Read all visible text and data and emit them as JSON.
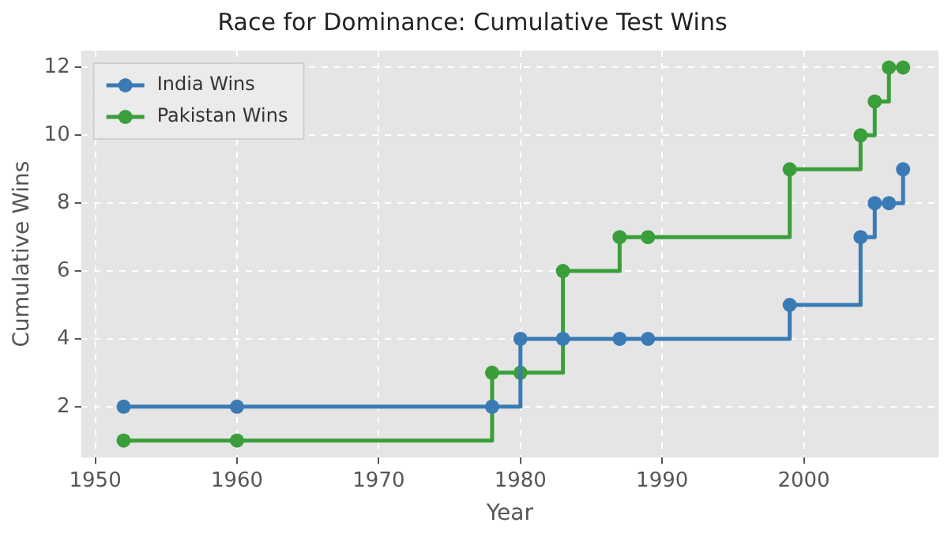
{
  "chart_data": {
    "type": "step",
    "title": "Race for Dominance: Cumulative Test Wins",
    "xlabel": "Year",
    "ylabel": "Cumulative Wins",
    "x": [
      1952,
      1960,
      1978,
      1980,
      1983,
      1987,
      1989,
      1999,
      2004,
      2005,
      2006,
      2007
    ],
    "series": [
      {
        "name": "India Wins",
        "color": "#3a7ab5",
        "values": [
          2,
          2,
          2,
          4,
          4,
          4,
          4,
          5,
          7,
          8,
          8,
          9
        ]
      },
      {
        "name": "Pakistan Wins",
        "color": "#3a9e3a",
        "values": [
          1,
          1,
          3,
          3,
          6,
          7,
          7,
          9,
          10,
          11,
          12,
          12
        ]
      }
    ],
    "xlim": [
      1949,
      2009.5
    ],
    "xticks": [
      1950,
      1960,
      1970,
      1980,
      1990,
      2000
    ],
    "ylim": [
      0.5,
      12.5
    ],
    "yticks": [
      2,
      4,
      6,
      8,
      10,
      12
    ],
    "grid": true,
    "legend": "top left",
    "marker": "circle",
    "line_style": "solid"
  }
}
